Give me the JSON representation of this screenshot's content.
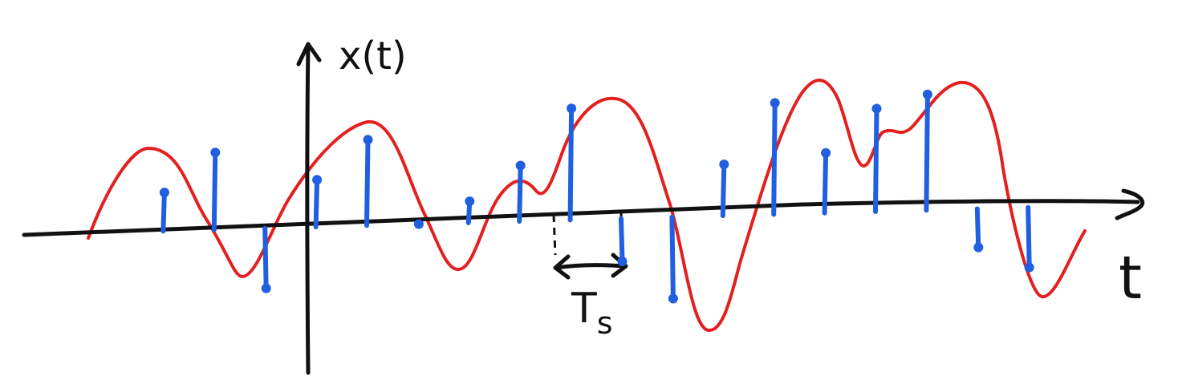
{
  "labels": {
    "y_axis": "x(t)",
    "x_axis": "t",
    "period": "T",
    "period_subscript": "s"
  },
  "colors": {
    "ink": "#111111",
    "signal": "#e41f1f",
    "samples": "#1f5fe0",
    "background": "#ffffff"
  },
  "samples": [
    {
      "t": -4,
      "x": 0.45
    },
    {
      "t": -3,
      "x": 0.9
    },
    {
      "t": -2,
      "x": -0.7
    },
    {
      "t": -1,
      "x": 0.55
    },
    {
      "t": 0,
      "x": 1.0
    },
    {
      "t": 1,
      "x": 0.0
    },
    {
      "t": 2,
      "x": 0.25
    },
    {
      "t": 3,
      "x": 0.65
    },
    {
      "t": 4,
      "x": 1.3
    },
    {
      "t": 5,
      "x": -0.5
    },
    {
      "t": 6,
      "x": -0.95
    },
    {
      "t": 7,
      "x": 0.6
    },
    {
      "t": 8,
      "x": 1.3
    },
    {
      "t": 9,
      "x": 0.7
    },
    {
      "t": 10,
      "x": 1.2
    },
    {
      "t": 11,
      "x": 1.35
    },
    {
      "t": 12,
      "x": -0.45
    },
    {
      "t": 13,
      "x": -0.7
    }
  ]
}
